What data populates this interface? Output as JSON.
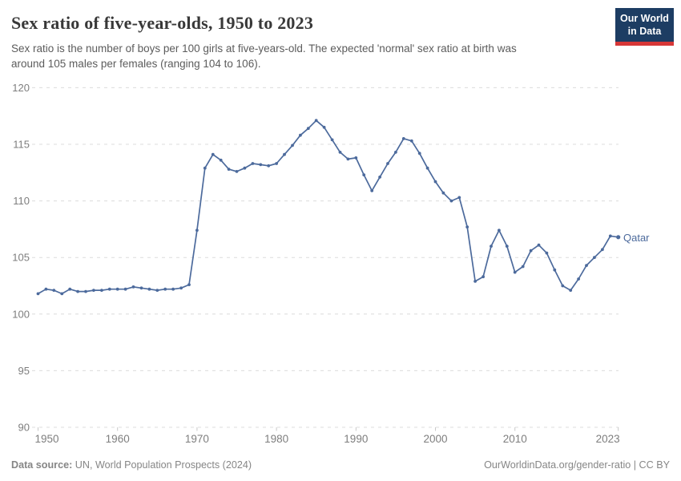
{
  "header": {
    "title": "Sex ratio of five-year-olds, 1950 to 2023",
    "subtitle_lines": [
      "Sex ratio is the number of boys per 100 girls at five-years-old. The expected 'normal' sex ratio at birth was",
      "around 105 males per females (ranging 104 to 106)."
    ],
    "logo": {
      "line1": "Our World",
      "line2": "in Data"
    }
  },
  "footer": {
    "source_label": "Data source:",
    "source_value": " UN, World Population Prospects (2024)",
    "credit": "OurWorldinData.org/gender-ratio | CC BY"
  },
  "colors": {
    "line": "#4c6a9c",
    "series_label": "#4c6a9c",
    "grid": "#dcdcdc",
    "tick_text": "#7e7e7e",
    "axis_tick": "#c9c9c9",
    "logo_bg": "#1d3d63",
    "logo_red": "#d73737"
  },
  "chart_data": {
    "type": "line",
    "title": "Sex ratio of five-year-olds, 1950 to 2023",
    "xlabel": "",
    "ylabel": "",
    "xlim": [
      1950,
      2023
    ],
    "ylim": [
      90,
      120
    ],
    "x_ticks": [
      1950,
      1960,
      1970,
      1980,
      1990,
      2000,
      2010,
      2023
    ],
    "y_ticks": [
      90,
      95,
      100,
      105,
      110,
      115,
      120
    ],
    "grid": "horizontal-dashed",
    "legend_position": "end-of-line-label",
    "x": [
      1950,
      1951,
      1952,
      1953,
      1954,
      1955,
      1956,
      1957,
      1958,
      1959,
      1960,
      1961,
      1962,
      1963,
      1964,
      1965,
      1966,
      1967,
      1968,
      1969,
      1970,
      1971,
      1972,
      1973,
      1974,
      1975,
      1976,
      1977,
      1978,
      1979,
      1980,
      1981,
      1982,
      1983,
      1984,
      1985,
      1986,
      1987,
      1988,
      1989,
      1990,
      1991,
      1992,
      1993,
      1994,
      1995,
      1996,
      1997,
      1998,
      1999,
      2000,
      2001,
      2002,
      2003,
      2004,
      2005,
      2006,
      2007,
      2008,
      2009,
      2010,
      2011,
      2012,
      2013,
      2014,
      2015,
      2016,
      2017,
      2018,
      2019,
      2020,
      2021,
      2022,
      2023
    ],
    "series": [
      {
        "name": "Qatar",
        "color": "#4c6a9c",
        "values": [
          101.8,
          102.2,
          102.1,
          101.8,
          102.2,
          102.0,
          102.0,
          102.1,
          102.1,
          102.2,
          102.2,
          102.2,
          102.4,
          102.3,
          102.2,
          102.1,
          102.2,
          102.2,
          102.3,
          102.6,
          107.4,
          112.9,
          114.1,
          113.6,
          112.8,
          112.6,
          112.9,
          113.3,
          113.2,
          113.1,
          113.3,
          114.1,
          114.9,
          115.8,
          116.4,
          117.1,
          116.5,
          115.4,
          114.3,
          113.7,
          113.8,
          112.3,
          110.9,
          112.1,
          113.3,
          114.3,
          115.5,
          115.3,
          114.2,
          112.9,
          111.7,
          110.7,
          110.0,
          110.3,
          107.7,
          102.9,
          103.3,
          106.0,
          107.4,
          106.0,
          103.7,
          104.2,
          105.6,
          106.1,
          105.4,
          103.9,
          102.5,
          102.1,
          103.1,
          104.3,
          105.0,
          105.7,
          106.9,
          106.8
        ]
      }
    ]
  }
}
